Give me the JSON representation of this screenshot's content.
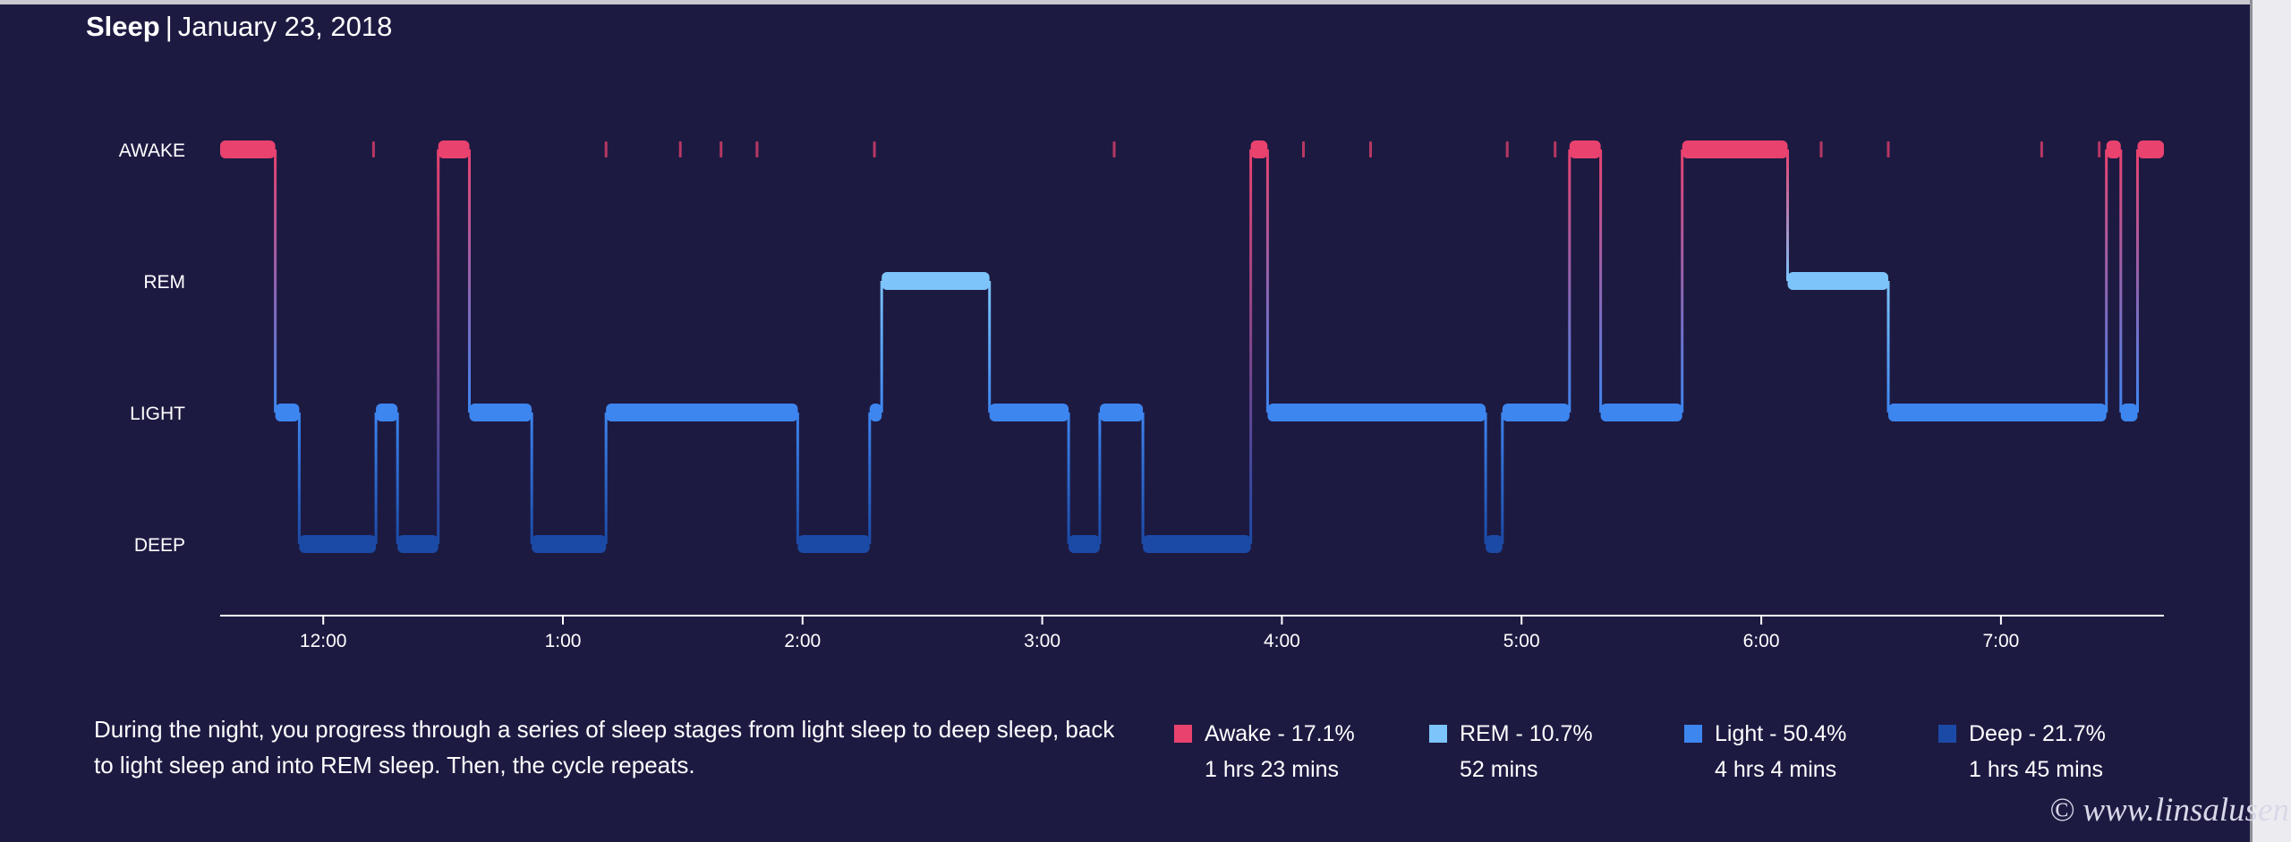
{
  "header": {
    "title": "Sleep",
    "separator": "|",
    "date": "January 23, 2018"
  },
  "colors": {
    "background": "#1d1a42",
    "awake": "#e9426f",
    "rem": "#7cc4fa",
    "light": "#3d86f0",
    "deep": "#1b4aa6",
    "axis": "#ffffff"
  },
  "chart_data": {
    "type": "hypnogram",
    "y_categories": [
      "AWAKE",
      "REM",
      "LIGHT",
      "DEEP"
    ],
    "x_tick_labels": [
      "12:00",
      "1:00",
      "2:00",
      "3:00",
      "4:00",
      "5:00",
      "6:00",
      "7:00"
    ],
    "x_range_hours": [
      23.57,
      31.68
    ],
    "time_unit": "hours (24 = 12:00 midnight)",
    "segments": [
      {
        "stage": "AWAKE",
        "start": 23.57,
        "end": 23.8
      },
      {
        "stage": "LIGHT",
        "start": 23.8,
        "end": 23.9
      },
      {
        "stage": "DEEP",
        "start": 23.9,
        "end": 24.22
      },
      {
        "stage": "LIGHT",
        "start": 24.22,
        "end": 24.31
      },
      {
        "stage": "DEEP",
        "start": 24.31,
        "end": 24.48
      },
      {
        "stage": "AWAKE",
        "start": 24.48,
        "end": 24.61
      },
      {
        "stage": "LIGHT",
        "start": 24.61,
        "end": 24.87
      },
      {
        "stage": "DEEP",
        "start": 24.87,
        "end": 25.18
      },
      {
        "stage": "LIGHT",
        "start": 25.18,
        "end": 25.98
      },
      {
        "stage": "DEEP",
        "start": 25.98,
        "end": 26.28
      },
      {
        "stage": "LIGHT",
        "start": 26.28,
        "end": 26.33
      },
      {
        "stage": "REM",
        "start": 26.33,
        "end": 26.78
      },
      {
        "stage": "LIGHT",
        "start": 26.78,
        "end": 27.11
      },
      {
        "stage": "DEEP",
        "start": 27.11,
        "end": 27.24
      },
      {
        "stage": "LIGHT",
        "start": 27.24,
        "end": 27.42
      },
      {
        "stage": "DEEP",
        "start": 27.42,
        "end": 27.87
      },
      {
        "stage": "AWAKE",
        "start": 27.87,
        "end": 27.94
      },
      {
        "stage": "LIGHT",
        "start": 27.94,
        "end": 28.85
      },
      {
        "stage": "DEEP",
        "start": 28.85,
        "end": 28.92
      },
      {
        "stage": "LIGHT",
        "start": 28.92,
        "end": 29.2
      },
      {
        "stage": "AWAKE",
        "start": 29.2,
        "end": 29.33
      },
      {
        "stage": "LIGHT",
        "start": 29.33,
        "end": 29.67
      },
      {
        "stage": "AWAKE",
        "start": 29.67,
        "end": 30.11
      },
      {
        "stage": "REM",
        "start": 30.11,
        "end": 30.53
      },
      {
        "stage": "LIGHT",
        "start": 30.53,
        "end": 31.44
      },
      {
        "stage": "AWAKE",
        "start": 31.44,
        "end": 31.5
      },
      {
        "stage": "LIGHT",
        "start": 31.5,
        "end": 31.57
      },
      {
        "stage": "AWAKE",
        "start": 31.57,
        "end": 31.68
      }
    ],
    "brief_awake_marks": [
      24.21,
      25.18,
      25.49,
      25.66,
      25.81,
      26.3,
      27.3,
      28.09,
      28.37,
      28.94,
      29.14,
      30.25,
      30.53,
      31.17,
      31.41
    ]
  },
  "description": "During the night, you progress through a series of sleep stages from light sleep to deep sleep, back to light sleep and into REM sleep. Then, the cycle repeats.",
  "legend": [
    {
      "label": "Awake - 17.1%",
      "value": "1 hrs 23 mins",
      "color": "#e9426f"
    },
    {
      "label": "REM - 10.7%",
      "value": "52 mins",
      "color": "#7cc4fa"
    },
    {
      "label": "Light - 50.4%",
      "value": "4 hrs 4 mins",
      "color": "#3d86f0"
    },
    {
      "label": "Deep - 21.7%",
      "value": "1 hrs 45 mins",
      "color": "#1b4aa6"
    }
  ],
  "watermark": "© www.linsalusen.se"
}
